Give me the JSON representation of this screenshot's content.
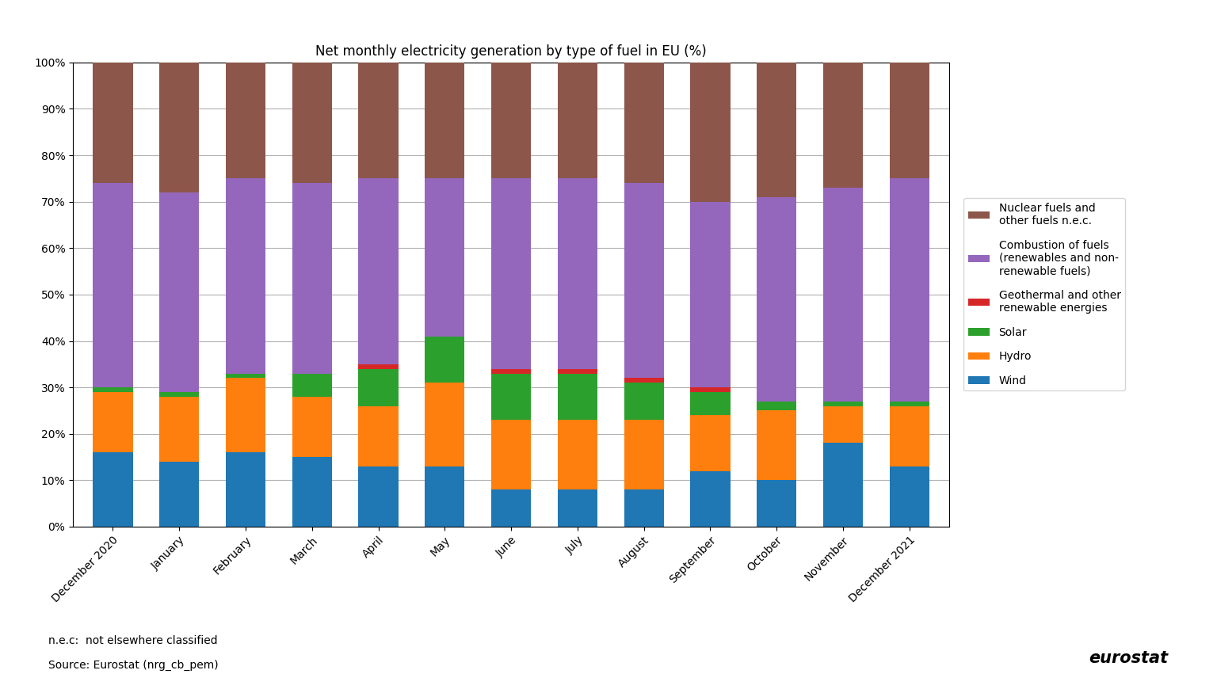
{
  "chart_data": {
    "type": "bar",
    "stacked": true,
    "title": "Net monthly electricity generation by type of fuel in EU (%)",
    "categories": [
      "December 2020",
      "January",
      "February",
      "March",
      "April",
      "May",
      "June",
      "July",
      "August",
      "September",
      "October",
      "November",
      "December 2021"
    ],
    "series": [
      {
        "name": "Wind",
        "values": [
          16,
          14,
          16,
          15,
          13,
          13,
          8,
          8,
          8,
          12,
          10,
          18,
          13
        ]
      },
      {
        "name": "Hydro",
        "values": [
          13,
          14,
          16,
          13,
          13,
          18,
          15,
          15,
          15,
          12,
          15,
          8,
          13
        ]
      },
      {
        "name": "Solar",
        "values": [
          1,
          1,
          1,
          5,
          8,
          10,
          10,
          10,
          8,
          5,
          2,
          1,
          1
        ]
      },
      {
        "name": "Geothermal and other\nrenewable energies",
        "values": [
          0,
          0,
          0,
          0,
          1,
          0,
          1,
          1,
          1,
          1,
          0,
          0,
          0
        ]
      },
      {
        "name": "Combustion of fuels\n(renewables and non-\nrenewable fuels)",
        "values": [
          44,
          43,
          42,
          41,
          40,
          34,
          41,
          41,
          42,
          40,
          44,
          46,
          48
        ]
      },
      {
        "name": "Nuclear fuels and\nother fuels n.e.c.",
        "values": [
          26,
          28,
          25,
          26,
          25,
          25,
          25,
          25,
          26,
          30,
          29,
          27,
          25
        ]
      }
    ],
    "ylim": [
      0,
      100
    ],
    "yticks": [
      {
        "value": 0,
        "label": "0%"
      },
      {
        "value": 10,
        "label": "10%"
      },
      {
        "value": 20,
        "label": "20%"
      },
      {
        "value": 30,
        "label": "30%"
      },
      {
        "value": 40,
        "label": "40%"
      },
      {
        "value": 50,
        "label": "50%"
      },
      {
        "value": 60,
        "label": "60%"
      },
      {
        "value": 70,
        "label": "70%"
      },
      {
        "value": 80,
        "label": "80%"
      },
      {
        "value": 90,
        "label": "90%"
      },
      {
        "value": 100,
        "label": "100%"
      }
    ],
    "grid": true,
    "legend": "center left",
    "annotations": [
      "n.e.c:  not elsewhere classified",
      "Source: Eurostat (nrg_cb_pem)",
      "eurostat"
    ]
  }
}
